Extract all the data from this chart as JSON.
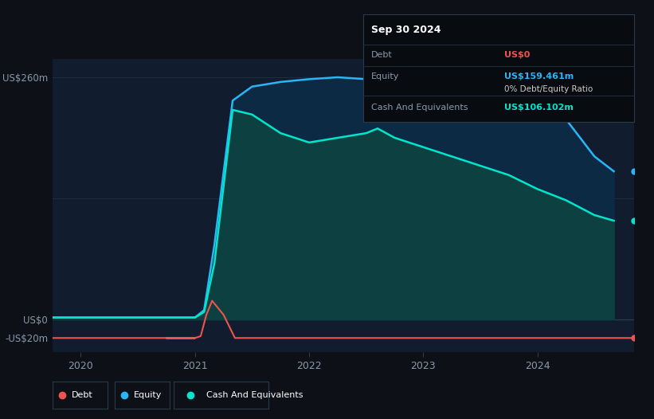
{
  "bg_color": "#0d1117",
  "plot_bg_color": "#111d2e",
  "grid_color": "#1a2a3a",
  "ylabel_260": "US$260m",
  "ylabel_0": "US$0",
  "ylabel_neg20": "-US$20m",
  "x_ticks": [
    2020,
    2021,
    2022,
    2023,
    2024
  ],
  "equity_color": "#29b6f6",
  "cash_color": "#00e5cc",
  "debt_color": "#ef5350",
  "equity_fill": "#0d2a45",
  "cash_fill": "#0d4040",
  "tooltip_bg": "#080c10",
  "tooltip_title": "Sep 30 2024",
  "tooltip_debt_label": "Debt",
  "tooltip_debt_value": "US$0",
  "tooltip_equity_label": "Equity",
  "tooltip_equity_value": "US$159.461m",
  "tooltip_ratio": "0% Debt/Equity Ratio",
  "tooltip_cash_label": "Cash And Equivalents",
  "tooltip_cash_value": "US$106.102m",
  "time": [
    2019.75,
    2020.0,
    2020.25,
    2020.5,
    2020.75,
    2021.0,
    2021.08,
    2021.17,
    2021.33,
    2021.5,
    2021.75,
    2022.0,
    2022.25,
    2022.5,
    2022.6,
    2022.75,
    2023.0,
    2023.25,
    2023.5,
    2023.75,
    2024.0,
    2024.25,
    2024.5,
    2024.67
  ],
  "equity": [
    2,
    2,
    2,
    2,
    2,
    2,
    10,
    80,
    235,
    250,
    255,
    258,
    260,
    258,
    260,
    255,
    252,
    255,
    250,
    245,
    235,
    215,
    175,
    159
  ],
  "cash": [
    2,
    2,
    2,
    2,
    2,
    2,
    8,
    60,
    225,
    220,
    200,
    190,
    195,
    200,
    205,
    195,
    185,
    175,
    165,
    155,
    140,
    128,
    112,
    106
  ],
  "debt_flat": -20,
  "debt_spike_x": [
    2020.75,
    2021.0,
    2021.05,
    2021.1,
    2021.15,
    2021.25,
    2021.35
  ],
  "debt_spike_y": [
    -20,
    -20,
    -18,
    5,
    20,
    5,
    -20
  ],
  "ylim_min": -35,
  "ylim_max": 280,
  "xmin": 2019.75,
  "xmax": 2024.85
}
